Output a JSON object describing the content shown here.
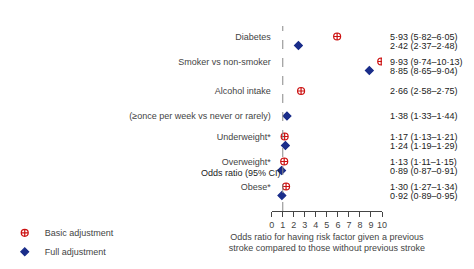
{
  "chart_data": {
    "type": "dot",
    "annotations": [
      "Odds ratio (95% CI)"
    ],
    "xlabel": "Odds ratio for having risk factor given a previous\nstroke compared to those without previous stroke",
    "xlim": [
      0,
      10
    ],
    "xticks": [
      0,
      1,
      2,
      3,
      4,
      5,
      6,
      7,
      8,
      9,
      10
    ],
    "reference_x": 1,
    "grid": false,
    "legend": "lower left",
    "data_labels": true,
    "categories": [
      "Diabetes",
      "Smoker vs non-smoker",
      "Alcohol intake",
      "(≥once per week vs never or rarely)",
      "Underweight*",
      "Overweight*",
      "Obese*"
    ],
    "series": [
      {
        "name": "Basic adjustment",
        "color": "#cc1111",
        "marker": "circle",
        "values": [
          5.93,
          9.93,
          2.66,
          null,
          1.17,
          1.13,
          1.3
        ],
        "value_labels": [
          "5·93 (5·82–6·05)",
          "9·93 (9·74–10·13)",
          "2·66 (2·58–2·75)",
          null,
          "1·17 (1·13–1·21)",
          "1·13 (1·11–1·15)",
          "1·30 (1·27–1·34)"
        ]
      },
      {
        "name": "Full adjustment",
        "color": "#1a2d8a",
        "marker": "diamond",
        "values": [
          2.42,
          8.85,
          null,
          1.38,
          1.24,
          0.89,
          0.92
        ],
        "value_labels": [
          "2·42 (2·37–2·48)",
          "8·85 (8·65–9·04)",
          null,
          "1·38 (1·33–1·44)",
          "1·24 (1·19–1·29)",
          "0·89 (0·87–0·91)",
          "0·92 (0·89–0·95)"
        ]
      }
    ]
  }
}
